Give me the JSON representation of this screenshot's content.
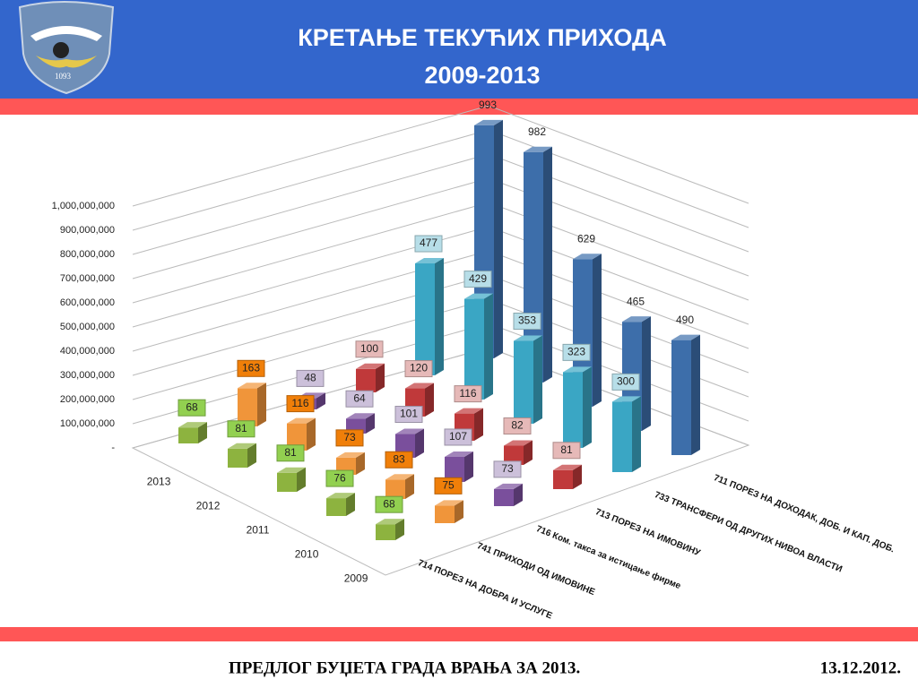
{
  "header": {
    "title_lines": [
      "КРЕТАЊЕ ТЕКУЋИХ ПРИХОДА",
      "2009-2013"
    ],
    "logo_text": "1093"
  },
  "chart_data": {
    "type": "bar3d",
    "categories": [
      "2013",
      "2012",
      "2011",
      "2010",
      "2009"
    ],
    "series": [
      {
        "name": "714 ПОРЕЗ НА ДОБРА И УСЛУГЕ",
        "color": "#8db33f",
        "label_box": "#92d050",
        "values": [
          68000000,
          81000000,
          81000000,
          76000000,
          68000000
        ],
        "value_labels": [
          "68",
          "81",
          "81",
          "76",
          "68"
        ]
      },
      {
        "name": "741 ПРИХОДИ ОД ИМОВИНЕ",
        "color": "#f0953a",
        "label_box": "#f07f09",
        "values": [
          163000000,
          116000000,
          73000000,
          83000000,
          75000000
        ],
        "value_labels": [
          "163",
          "116",
          "73",
          "83",
          "75"
        ]
      },
      {
        "name": "716 Ком. такса за истицање фирме",
        "color": "#7a4f9c",
        "label_box": "#ccc0da",
        "values": [
          48000000,
          64000000,
          101000000,
          107000000,
          73000000
        ],
        "value_labels": [
          "48",
          "64",
          "101",
          "107",
          "73"
        ]
      },
      {
        "name": "713 ПОРЕЗ НА ИМОВИНУ",
        "color": "#c0393a",
        "label_box": "#e6b9b8",
        "values": [
          100000000,
          120000000,
          116000000,
          82000000,
          81000000
        ],
        "value_labels": [
          "100",
          "120",
          "116",
          "82",
          "81"
        ]
      },
      {
        "name": "733 ТРАНСФЕРИ ОД ДРУГИХ НИВОА ВЛАСТИ",
        "color": "#3aa6c4",
        "label_box": "#b7dee8",
        "values": [
          477000000,
          429000000,
          353000000,
          323000000,
          300000000
        ],
        "value_labels": [
          "477",
          "429",
          "353",
          "323",
          "300"
        ]
      },
      {
        "name": "711 ПОРЕЗ НА ДОХОДАК, ДОБ. И КАП. ДОБ.",
        "color": "#3d6eaa",
        "values": [
          993000000,
          982000000,
          629000000,
          465000000,
          490000000
        ],
        "value_labels": [
          "993",
          "982",
          "629",
          "465",
          "490"
        ]
      }
    ],
    "ylim": [
      0,
      1000000000
    ],
    "yticks": [
      {
        "value": 0,
        "label": "-"
      },
      {
        "value": 100000000,
        "label": "100,000,000"
      },
      {
        "value": 200000000,
        "label": "200,000,000"
      },
      {
        "value": 300000000,
        "label": "300,000,000"
      },
      {
        "value": 400000000,
        "label": "400,000,000"
      },
      {
        "value": 500000000,
        "label": "500,000,000"
      },
      {
        "value": 600000000,
        "label": "600,000,000"
      },
      {
        "value": 700000000,
        "label": "700,000,000"
      },
      {
        "value": 800000000,
        "label": "800,000,000"
      },
      {
        "value": 900000000,
        "label": "900,000,000"
      },
      {
        "value": 1000000000,
        "label": "1,000,000,000"
      }
    ],
    "grid": true
  },
  "footer": {
    "left": "ПРЕДЛОГ БУЏЕТА ГРАДА ВРАЊА ЗА 2013.",
    "right": "13.12.2012."
  }
}
